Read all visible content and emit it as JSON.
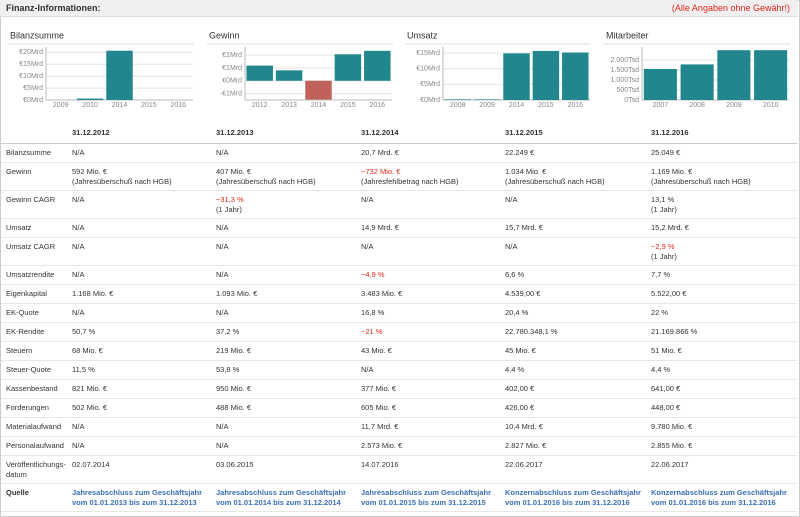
{
  "header": {
    "title": "Finanz-Informationen:",
    "note": "(Alle Angaben ohne Gewähr!)"
  },
  "chart_data": [
    {
      "type": "bar",
      "title": "Bilanzsumme",
      "categories": [
        "2009",
        "2010",
        "2014",
        "2015",
        "2016"
      ],
      "values": [
        0,
        0.6,
        20.7,
        0,
        0
      ],
      "color": "#21868e",
      "ylim": [
        0,
        21
      ],
      "yticks": [
        {
          "value": 0,
          "label": "€0Mrd"
        },
        {
          "value": 5,
          "label": "€5Mrd"
        },
        {
          "value": 10,
          "label": "€10Mrd"
        },
        {
          "value": 15,
          "label": "€15Mrd"
        },
        {
          "value": 20,
          "label": "€20Mrd"
        }
      ],
      "grid": true
    },
    {
      "type": "bar",
      "title": "Gewinn",
      "categories": [
        "2012",
        "2013",
        "2014",
        "2015",
        "2016"
      ],
      "values": [
        0.592,
        0.407,
        -0.732,
        1.034,
        1.169
      ],
      "color": "#21868e",
      "negative_color": "#c0615c",
      "ylim": [
        -0.75,
        1.2
      ],
      "yticks": [
        {
          "value": -0.5,
          "label": "-€1Mrd"
        },
        {
          "value": 0,
          "label": "€0Mrd"
        },
        {
          "value": 0.5,
          "label": "€1Mrd"
        },
        {
          "value": 1,
          "label": "€1Mrd"
        }
      ],
      "grid": true
    },
    {
      "type": "bar",
      "title": "Umsatz",
      "categories": [
        "2008",
        "2009",
        "2014",
        "2015",
        "2016"
      ],
      "values": [
        0.2,
        0.2,
        14.9,
        15.7,
        15.2
      ],
      "color": "#21868e",
      "ylim": [
        0,
        16
      ],
      "yticks": [
        {
          "value": 0,
          "label": "€0Mrd"
        },
        {
          "value": 5,
          "label": "€5Mrd"
        },
        {
          "value": 10,
          "label": "€10Mrd"
        },
        {
          "value": 15,
          "label": "€15Mrd"
        }
      ],
      "grid": true
    },
    {
      "type": "bar",
      "title": "Mitarbeiter",
      "categories": [
        "2007",
        "2008",
        "2009",
        "2010"
      ],
      "values": [
        1550,
        1780,
        2490,
        2490
      ],
      "color": "#21868e",
      "ylim": [
        0,
        2500
      ],
      "yticks": [
        {
          "value": 0,
          "label": "0Tsd"
        },
        {
          "value": 500,
          "label": "500Tsd"
        },
        {
          "value": 1000,
          "label": "1.000Tsd"
        },
        {
          "value": 1500,
          "label": "1.500Tsd"
        },
        {
          "value": 2000,
          "label": "2.000Tsd"
        }
      ],
      "grid": true
    }
  ],
  "table": {
    "columns": [
      "31.12.2012",
      "31.12.2013",
      "31.12.2014",
      "31.12.2015",
      "31.12.2016"
    ],
    "rows": [
      {
        "label": "Bilanzsumme",
        "cells": [
          "N/A",
          "N/A",
          "20,7 Mrd. €",
          "22.249 €",
          "25.049 €"
        ]
      },
      {
        "label": "Gewinn",
        "cells": [
          {
            "text": "592 Mio. €",
            "note": "(Jahresüberschuß nach HGB)"
          },
          {
            "text": "407 Mio. €",
            "note": "(Jahresüberschuß nach HGB)"
          },
          {
            "text": "−732 Mio. €",
            "note": "(Jahresfehlbetrag nach HGB)",
            "negative": true
          },
          {
            "text": "1.034 Mio. €",
            "note": "(Jahresüberschuß nach HGB)"
          },
          {
            "text": "1.169 Mio. €",
            "note": "(Jahresüberschuß nach HGB)"
          }
        ]
      },
      {
        "label": "Gewinn CAGR",
        "cells": [
          "N/A",
          {
            "text": "−31,3 %",
            "note": "(1 Jahr)",
            "negative": true
          },
          "N/A",
          "N/A",
          {
            "text": "13,1 %",
            "note": "(1 Jahr)"
          }
        ]
      },
      {
        "label": "Umsatz",
        "cells": [
          "N/A",
          "N/A",
          "14,9 Mrd. €",
          "15,7 Mrd. €",
          "15,2 Mrd. €"
        ]
      },
      {
        "label": "Umsatz CAGR",
        "cells": [
          "N/A",
          "N/A",
          "N/A",
          "N/A",
          {
            "text": "−2,9 %",
            "note": "(1 Jahr)",
            "negative": true
          }
        ]
      },
      {
        "label": "Umsatzrendite",
        "cells": [
          "N/A",
          "N/A",
          {
            "text": "−4,9 %",
            "negative": true
          },
          "6,6 %",
          "7,7 %"
        ]
      },
      {
        "label": "Eigenkapital",
        "cells": [
          "1.168 Mio. €",
          "1.093 Mio. €",
          "3.483 Mio. €",
          "4.539,00 €",
          "5.522,00 €"
        ]
      },
      {
        "label": "EK-Quote",
        "cells": [
          "N/A",
          "N/A",
          "16,8 %",
          "20,4 %",
          "22 %"
        ]
      },
      {
        "label": "EK-Rendite",
        "cells": [
          "50,7 %",
          "37,2 %",
          {
            "text": "−21 %",
            "negative": true
          },
          "22.780.348,1 %",
          "21.169.866 %"
        ]
      },
      {
        "label": "Steuern",
        "cells": [
          "68 Mio. €",
          "219 Mio. €",
          "43 Mio. €",
          "45 Mio. €",
          "51 Mio. €"
        ]
      },
      {
        "label": "Steuer-Quote",
        "cells": [
          "11,5 %",
          "53,8 %",
          "N/A",
          "4,4 %",
          "4,4 %"
        ]
      },
      {
        "label": "Kassenbestand",
        "cells": [
          "821 Mio. €",
          "950 Mio. €",
          "377 Mio. €",
          "402,00 €",
          "641,00 €"
        ]
      },
      {
        "label": "Forderungen",
        "cells": [
          "502 Mio. €",
          "488 Mio. €",
          "605 Mio. €",
          "426,00 €",
          "448,00 €"
        ]
      },
      {
        "label": "Materialaufwand",
        "cells": [
          "N/A",
          "N/A",
          "11,7 Mrd. €",
          "10,4 Mrd. €",
          "9.780 Mio. €"
        ]
      },
      {
        "label": "Personalaufwand",
        "cells": [
          "N/A",
          "N/A",
          "2.573 Mio. €",
          "2.827 Mio. €",
          "2.855 Mio. €"
        ]
      },
      {
        "label": "Veröffentlichungs-datum",
        "cells": [
          "02.07.2014",
          "03.06.2015",
          "14.07.2016",
          "22.06.2017",
          "22.06.2017"
        ]
      }
    ],
    "source": {
      "label": "Quelle",
      "links": [
        "Jahresabschluss zum Geschäftsjahr vom 01.01.2013 bis zum 31.12.2013",
        "Jahresabschluss zum Geschäftsjahr vom 01.01.2014 bis zum 31.12.2014",
        "Jahresabschluss zum Geschäftsjahr vom 01.01.2015 bis zum 31.12.2015",
        "Konzernabschluss zum Geschäftsjahr vom 01.01.2016 bis zum 31.12.2016",
        "Konzernabschluss zum Geschäftsjahr vom 01.01.2016 bis zum 31.12.2016"
      ]
    }
  }
}
